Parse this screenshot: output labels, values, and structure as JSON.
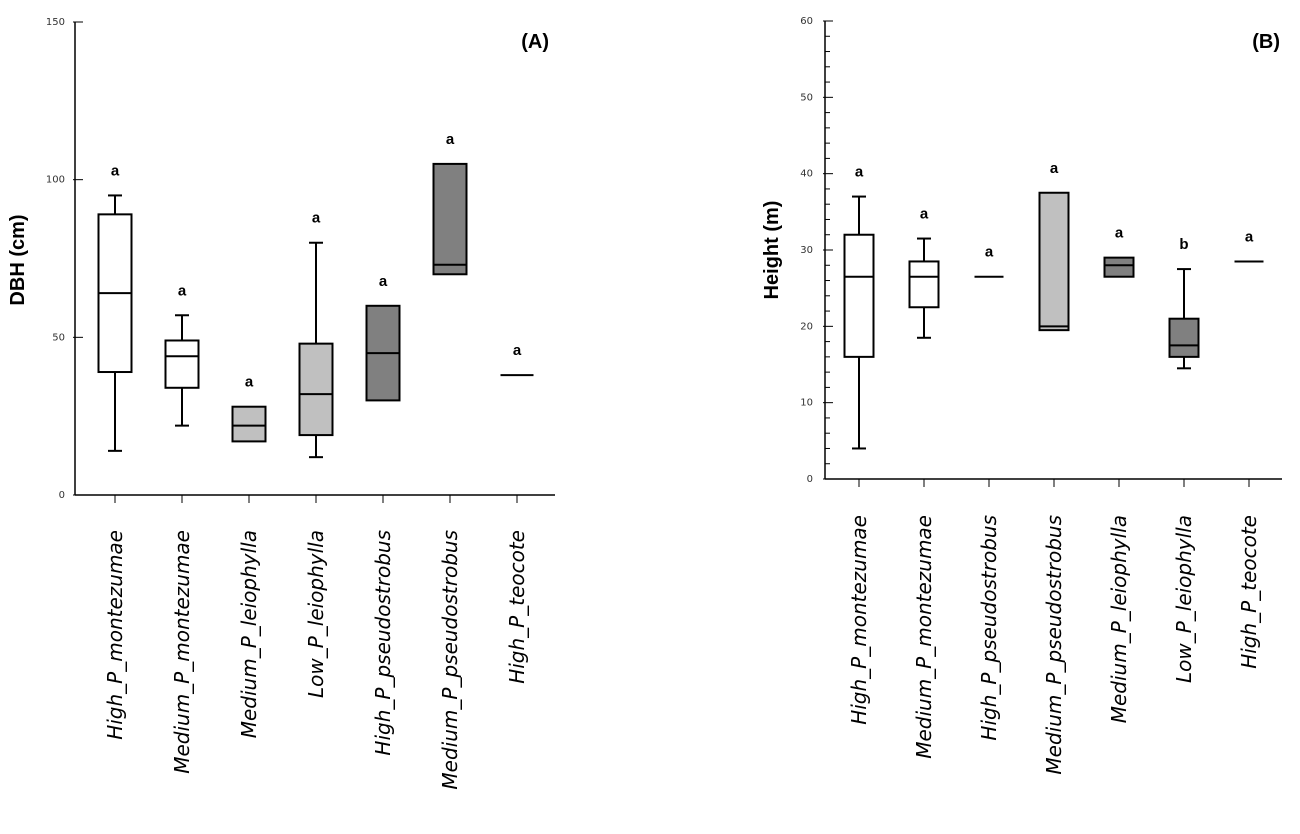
{
  "chart_data": [
    {
      "type": "box",
      "panel": "(A)",
      "ylabel": "DBH (cm)",
      "xlabel": "",
      "ylim": [
        0,
        150
      ],
      "yticks": [
        0,
        50,
        100,
        150
      ],
      "minor_ticks": false,
      "grid": false,
      "categories": [
        "High_P_montezumae",
        "Medium_P_montezumae",
        "Medium_P_leiophylla",
        "Low_P_leiophylla",
        "High_P_pseudostrobus",
        "Medium_P_pseudostrobus",
        "High_P_teocote"
      ],
      "boxes": [
        {
          "min": 14,
          "q1": 39,
          "median": 64,
          "q3": 89,
          "max": 95,
          "fill": "#ffffff",
          "sig": "a"
        },
        {
          "min": 22,
          "q1": 34,
          "median": 44,
          "q3": 49,
          "max": 57,
          "fill": "#ffffff",
          "sig": "a"
        },
        {
          "min": 17,
          "q1": 17,
          "median": 22,
          "q3": 28,
          "max": 28,
          "fill": "#c0c0c0",
          "sig": "a"
        },
        {
          "min": 12,
          "q1": 19,
          "median": 32,
          "q3": 48,
          "max": 80,
          "fill": "#c0c0c0",
          "sig": "a"
        },
        {
          "min": 30,
          "q1": 30,
          "median": 45,
          "q3": 60,
          "max": 60,
          "fill": "#808080",
          "sig": "a"
        },
        {
          "min": 70,
          "q1": 70,
          "median": 73,
          "q3": 105,
          "max": 105,
          "fill": "#808080",
          "sig": "a"
        },
        {
          "min": 38,
          "q1": 38,
          "median": 38,
          "q3": 38,
          "max": 38,
          "fill": "#808080",
          "sig": "a"
        }
      ]
    },
    {
      "type": "box",
      "panel": "(B)",
      "ylabel": "Height (m)",
      "xlabel": "",
      "ylim": [
        0,
        60
      ],
      "yticks": [
        0,
        10,
        20,
        30,
        40,
        50,
        60
      ],
      "minor_ticks": true,
      "grid": false,
      "categories": [
        "High_P_montezumae",
        "Medium_P_montezumae",
        "High_P_pseudostrobus",
        "Medium_P_pseudostrobus",
        "Medium_P_leiophylla",
        "Low_P_leiophylla",
        "High_P_teocote"
      ],
      "boxes": [
        {
          "min": 4,
          "q1": 16,
          "median": 26.5,
          "q3": 32,
          "max": 37,
          "fill": "#ffffff",
          "sig": "a"
        },
        {
          "min": 18.5,
          "q1": 22.5,
          "median": 26.5,
          "q3": 28.5,
          "max": 31.5,
          "fill": "#ffffff",
          "sig": "a"
        },
        {
          "min": 26.5,
          "q1": 26.5,
          "median": 26.5,
          "q3": 26.5,
          "max": 26.5,
          "fill": "#ffffff",
          "sig": "a"
        },
        {
          "min": 19.5,
          "q1": 19.5,
          "median": 20,
          "q3": 37.5,
          "max": 37.5,
          "fill": "#c0c0c0",
          "sig": "a"
        },
        {
          "min": 26.5,
          "q1": 26.5,
          "median": 28,
          "q3": 29,
          "max": 29,
          "fill": "#808080",
          "sig": "a"
        },
        {
          "min": 14.5,
          "q1": 16,
          "median": 17.5,
          "q3": 21,
          "max": 27.5,
          "fill": "#808080",
          "sig": "b"
        },
        {
          "min": 28.5,
          "q1": 28.5,
          "median": 28.5,
          "q3": 28.5,
          "max": 28.5,
          "fill": "#808080",
          "sig": "a"
        }
      ]
    }
  ]
}
